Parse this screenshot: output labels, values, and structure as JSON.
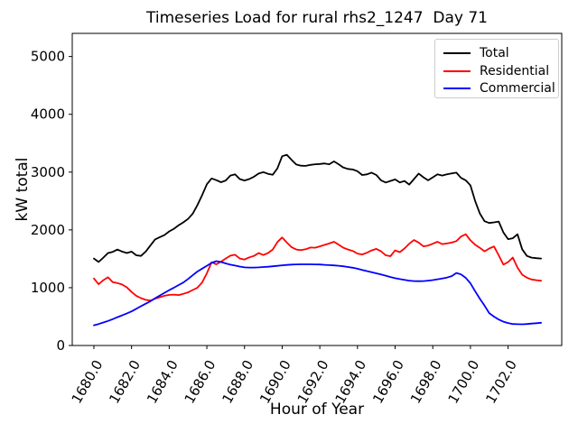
{
  "chart_data": {
    "type": "line",
    "title": "Timeseries Load for rural rhs2_1247  Day 71",
    "xlabel": "Hour of Year",
    "ylabel": "kW total",
    "xlim": [
      1678.85,
      1704.85
    ],
    "ylim": [
      0,
      5400
    ],
    "grid": false,
    "legend_position": "upper right",
    "xticks": [
      1680,
      1682,
      1684,
      1686,
      1688,
      1690,
      1692,
      1694,
      1696,
      1698,
      1700,
      1702
    ],
    "xtick_labels": [
      "1680.0",
      "1682.0",
      "1684.0",
      "1686.0",
      "1688.0",
      "1690.0",
      "1692.0",
      "1694.0",
      "1696.0",
      "1698.0",
      "1700.0",
      "1702.0"
    ],
    "yticks": [
      0,
      1000,
      2000,
      3000,
      4000,
      5000
    ],
    "ytick_labels": [
      "0",
      "1000",
      "2000",
      "3000",
      "4000",
      "5000"
    ],
    "x": [
      1680.0,
      1680.25,
      1680.5,
      1680.75,
      1681.0,
      1681.25,
      1681.5,
      1681.75,
      1682.0,
      1682.25,
      1682.5,
      1682.75,
      1683.0,
      1683.25,
      1683.5,
      1683.75,
      1684.0,
      1684.25,
      1684.5,
      1684.75,
      1685.0,
      1685.25,
      1685.5,
      1685.75,
      1686.0,
      1686.25,
      1686.5,
      1686.75,
      1687.0,
      1687.25,
      1687.5,
      1687.75,
      1688.0,
      1688.25,
      1688.5,
      1688.75,
      1689.0,
      1689.25,
      1689.5,
      1689.75,
      1690.0,
      1690.25,
      1690.5,
      1690.75,
      1691.0,
      1691.25,
      1691.5,
      1691.75,
      1692.0,
      1692.25,
      1692.5,
      1692.75,
      1693.0,
      1693.25,
      1693.5,
      1693.75,
      1694.0,
      1694.25,
      1694.5,
      1694.75,
      1695.0,
      1695.25,
      1695.5,
      1695.75,
      1696.0,
      1696.25,
      1696.5,
      1696.75,
      1697.0,
      1697.25,
      1697.5,
      1697.75,
      1698.0,
      1698.25,
      1698.5,
      1698.75,
      1699.0,
      1699.25,
      1699.5,
      1699.75,
      1700.0,
      1700.25,
      1700.5,
      1700.75,
      1701.0,
      1701.25,
      1701.5,
      1701.75,
      1702.0,
      1702.25,
      1702.5,
      1702.75,
      1703.0,
      1703.25,
      1703.5,
      1703.75
    ],
    "series": [
      {
        "name": "Total",
        "color": "#000000",
        "values": [
          1505,
          1445,
          1520,
          1600,
          1620,
          1660,
          1625,
          1600,
          1625,
          1560,
          1550,
          1625,
          1730,
          1835,
          1875,
          1910,
          1975,
          2020,
          2080,
          2130,
          2190,
          2280,
          2430,
          2600,
          2790,
          2890,
          2860,
          2825,
          2855,
          2940,
          2960,
          2880,
          2855,
          2880,
          2920,
          2975,
          3000,
          2970,
          2955,
          3065,
          3275,
          3300,
          3210,
          3130,
          3110,
          3107,
          3125,
          3135,
          3140,
          3150,
          3135,
          3185,
          3135,
          3080,
          3055,
          3045,
          3015,
          2950,
          2960,
          2990,
          2950,
          2858,
          2820,
          2847,
          2873,
          2820,
          2847,
          2784,
          2880,
          2975,
          2910,
          2858,
          2909,
          2961,
          2940,
          2961,
          2977,
          2990,
          2900,
          2858,
          2770,
          2500,
          2285,
          2150,
          2120,
          2130,
          2145,
          1955,
          1840,
          1855,
          1925,
          1665,
          1550,
          1520,
          1510,
          1505
        ]
      },
      {
        "name": "Residential",
        "color": "#ff0000",
        "values": [
          1160,
          1060,
          1130,
          1180,
          1095,
          1080,
          1055,
          1005,
          925,
          860,
          820,
          790,
          778,
          808,
          835,
          860,
          875,
          880,
          872,
          895,
          920,
          960,
          1000,
          1090,
          1250,
          1440,
          1405,
          1450,
          1505,
          1555,
          1570,
          1505,
          1488,
          1525,
          1550,
          1600,
          1565,
          1600,
          1660,
          1790,
          1870,
          1780,
          1700,
          1660,
          1650,
          1665,
          1695,
          1692,
          1715,
          1740,
          1765,
          1795,
          1745,
          1692,
          1660,
          1635,
          1590,
          1575,
          1605,
          1645,
          1672,
          1630,
          1560,
          1545,
          1645,
          1615,
          1680,
          1760,
          1825,
          1780,
          1715,
          1730,
          1760,
          1795,
          1755,
          1765,
          1780,
          1805,
          1885,
          1925,
          1820,
          1744,
          1690,
          1630,
          1677,
          1713,
          1560,
          1400,
          1443,
          1521,
          1349,
          1225,
          1173,
          1142,
          1130,
          1120
        ]
      },
      {
        "name": "Commercial",
        "color": "#0000ff",
        "values": [
          350,
          372,
          398,
          425,
          455,
          490,
          522,
          555,
          590,
          635,
          680,
          722,
          765,
          818,
          865,
          912,
          958,
          1000,
          1045,
          1090,
          1150,
          1215,
          1280,
          1330,
          1380,
          1430,
          1460,
          1445,
          1420,
          1398,
          1382,
          1365,
          1352,
          1349,
          1349,
          1352,
          1358,
          1363,
          1370,
          1378,
          1388,
          1394,
          1400,
          1403,
          1404,
          1405,
          1404,
          1403,
          1401,
          1396,
          1391,
          1386,
          1380,
          1371,
          1358,
          1345,
          1328,
          1308,
          1288,
          1268,
          1248,
          1228,
          1208,
          1185,
          1165,
          1148,
          1135,
          1122,
          1115,
          1113,
          1115,
          1122,
          1131,
          1145,
          1160,
          1175,
          1200,
          1255,
          1230,
          1170,
          1075,
          940,
          810,
          690,
          560,
          500,
          450,
          412,
          388,
          372,
          368,
          367,
          371,
          380,
          386,
          393
        ]
      }
    ]
  }
}
